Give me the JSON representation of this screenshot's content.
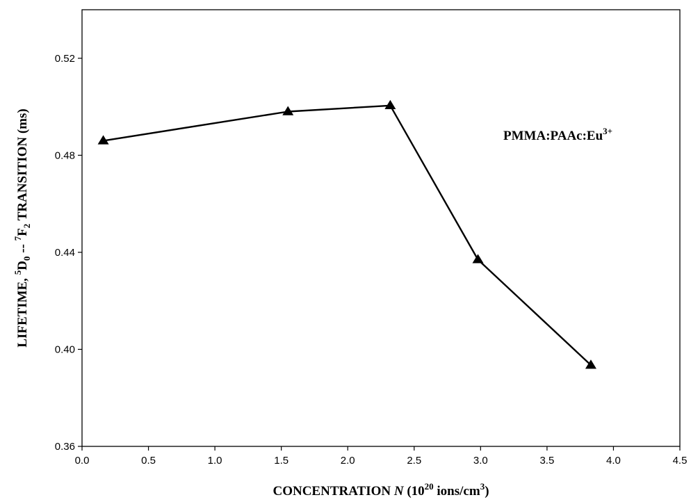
{
  "chart_data": {
    "type": "line",
    "xlabel": {
      "pre": "CONCENTRATION ",
      "var": "N",
      "mid": " (10",
      "exp": "20",
      "post": " ions/cm",
      "exp2": "3",
      "end": ")"
    },
    "ylabel": {
      "pre": "LIFETIME, ",
      "sup1": "5",
      "d": "D",
      "sub1": "0",
      "mid": " -- ",
      "sup2": "7",
      "f": "F",
      "sub2": "2",
      "post": " TRANSITION  (ms)"
    },
    "annotation": {
      "base": "PMMA:PAAc:Eu",
      "sup": "3+"
    },
    "xlim": [
      0.0,
      4.5
    ],
    "ylim": [
      0.36,
      0.54
    ],
    "xticks": [
      "0.0",
      "0.5",
      "1.0",
      "1.5",
      "2.0",
      "2.5",
      "3.0",
      "3.5",
      "4.0",
      "4.5"
    ],
    "yticks": [
      "0.36",
      "0.40",
      "0.44",
      "0.48",
      "0.52"
    ],
    "grid": false,
    "marker": "triangle",
    "series": [
      {
        "x": [
          0.16,
          1.55,
          2.32,
          2.98,
          3.83
        ],
        "y": [
          0.486,
          0.498,
          0.5005,
          0.437,
          0.3935
        ]
      }
    ]
  }
}
